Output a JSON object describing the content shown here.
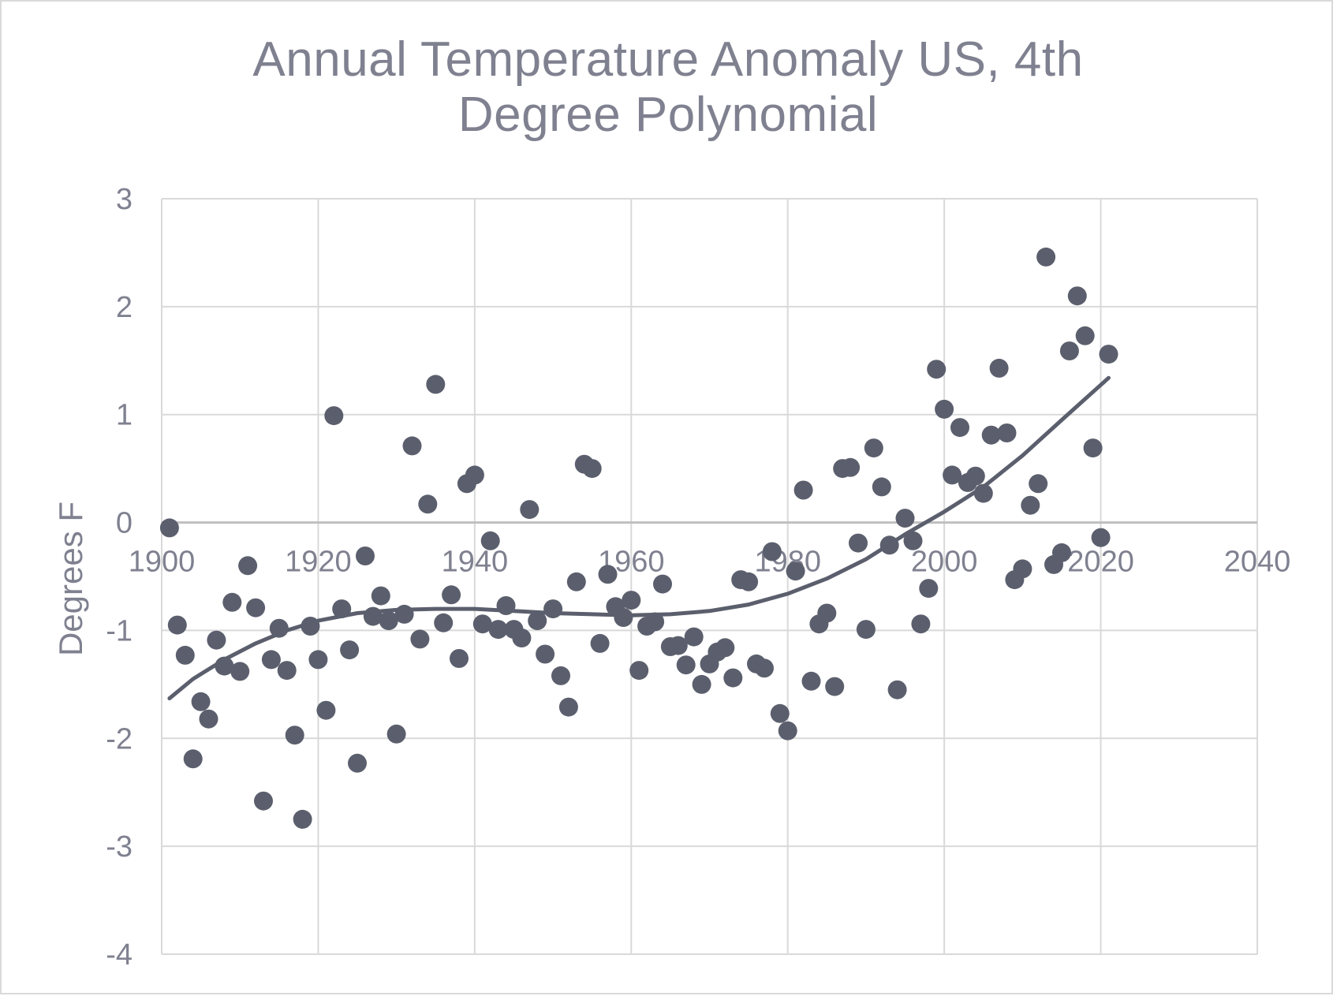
{
  "chart_data": {
    "type": "scatter",
    "title_lines": [
      "Annual Temperature Anomaly US, 4th",
      "Degree Polynomial"
    ],
    "xlabel": "",
    "ylabel": "Degrees F",
    "xlim": [
      1900,
      2040
    ],
    "ylim": [
      -4,
      3
    ],
    "x_ticks": [
      1900,
      1920,
      1940,
      1960,
      1980,
      2000,
      2020,
      2040
    ],
    "y_ticks": [
      3,
      2,
      1,
      0,
      -1,
      -2,
      -3,
      -4
    ],
    "grid": true,
    "legend": "none",
    "marker_color": "#5b5f6d",
    "trendline": {
      "type": "polynomial",
      "order": 4,
      "color": "#5b5f6d"
    },
    "points": [
      [
        1901,
        -0.05
      ],
      [
        1902,
        -0.95
      ],
      [
        1903,
        -1.23
      ],
      [
        1904,
        -2.19
      ],
      [
        1905,
        -1.66
      ],
      [
        1906,
        -1.82
      ],
      [
        1907,
        -1.09
      ],
      [
        1908,
        -1.33
      ],
      [
        1909,
        -0.74
      ],
      [
        1910,
        -1.38
      ],
      [
        1911,
        -0.4
      ],
      [
        1912,
        -0.79
      ],
      [
        1913,
        -2.58
      ],
      [
        1914,
        -1.27
      ],
      [
        1915,
        -0.98
      ],
      [
        1916,
        -1.37
      ],
      [
        1917,
        -1.97
      ],
      [
        1918,
        -2.75
      ],
      [
        1919,
        -0.96
      ],
      [
        1920,
        -1.27
      ],
      [
        1921,
        -1.74
      ],
      [
        1922,
        0.99
      ],
      [
        1923,
        -0.8
      ],
      [
        1924,
        -1.18
      ],
      [
        1925,
        -2.23
      ],
      [
        1926,
        -0.31
      ],
      [
        1927,
        -0.87
      ],
      [
        1928,
        -0.68
      ],
      [
        1929,
        -0.91
      ],
      [
        1930,
        -1.96
      ],
      [
        1931,
        -0.85
      ],
      [
        1932,
        0.71
      ],
      [
        1933,
        -1.08
      ],
      [
        1934,
        0.17
      ],
      [
        1935,
        1.28
      ],
      [
        1936,
        -0.93
      ],
      [
        1937,
        -0.67
      ],
      [
        1938,
        -1.26
      ],
      [
        1939,
        0.36
      ],
      [
        1940,
        0.44
      ],
      [
        1941,
        -0.94
      ],
      [
        1942,
        -0.17
      ],
      [
        1943,
        -0.99
      ],
      [
        1944,
        -0.77
      ],
      [
        1945,
        -0.99
      ],
      [
        1946,
        -1.07
      ],
      [
        1947,
        0.12
      ],
      [
        1948,
        -0.91
      ],
      [
        1949,
        -1.22
      ],
      [
        1950,
        -0.8
      ],
      [
        1951,
        -1.42
      ],
      [
        1952,
        -1.71
      ],
      [
        1953,
        -0.55
      ],
      [
        1954,
        0.54
      ],
      [
        1955,
        0.5
      ],
      [
        1956,
        -1.12
      ],
      [
        1957,
        -0.48
      ],
      [
        1958,
        -0.78
      ],
      [
        1959,
        -0.88
      ],
      [
        1960,
        -0.72
      ],
      [
        1961,
        -1.37
      ],
      [
        1962,
        -0.96
      ],
      [
        1963,
        -0.92
      ],
      [
        1964,
        -0.57
      ],
      [
        1965,
        -1.15
      ],
      [
        1966,
        -1.14
      ],
      [
        1967,
        -1.32
      ],
      [
        1968,
        -1.06
      ],
      [
        1969,
        -1.5
      ],
      [
        1970,
        -1.31
      ],
      [
        1971,
        -1.2
      ],
      [
        1972,
        -1.16
      ],
      [
        1973,
        -1.44
      ],
      [
        1974,
        -0.53
      ],
      [
        1975,
        -0.55
      ],
      [
        1976,
        -1.31
      ],
      [
        1977,
        -1.35
      ],
      [
        1978,
        -0.27
      ],
      [
        1979,
        -1.77
      ],
      [
        1980,
        -1.93
      ],
      [
        1981,
        -0.45
      ],
      [
        1982,
        0.3
      ],
      [
        1983,
        -1.47
      ],
      [
        1984,
        -0.94
      ],
      [
        1985,
        -0.84
      ],
      [
        1986,
        -1.52
      ],
      [
        1987,
        0.5
      ],
      [
        1988,
        0.51
      ],
      [
        1989,
        -0.19
      ],
      [
        1990,
        -0.99
      ],
      [
        1991,
        0.69
      ],
      [
        1992,
        0.33
      ],
      [
        1993,
        -0.21
      ],
      [
        1994,
        -1.55
      ],
      [
        1995,
        0.04
      ],
      [
        1996,
        -0.17
      ],
      [
        1997,
        -0.94
      ],
      [
        1998,
        -0.61
      ],
      [
        1999,
        1.42
      ],
      [
        2000,
        1.05
      ],
      [
        2001,
        0.44
      ],
      [
        2002,
        0.88
      ],
      [
        2003,
        0.37
      ],
      [
        2004,
        0.43
      ],
      [
        2005,
        0.27
      ],
      [
        2006,
        0.81
      ],
      [
        2007,
        1.43
      ],
      [
        2008,
        0.83
      ],
      [
        2009,
        -0.53
      ],
      [
        2010,
        -0.43
      ],
      [
        2011,
        0.16
      ],
      [
        2012,
        0.36
      ],
      [
        2013,
        2.46
      ],
      [
        2014,
        -0.39
      ],
      [
        2015,
        -0.28
      ],
      [
        2016,
        1.59
      ],
      [
        2017,
        2.1
      ],
      [
        2018,
        1.73
      ],
      [
        2019,
        0.69
      ],
      [
        2020,
        -0.14
      ],
      [
        2021,
        1.56
      ]
    ],
    "trendline_points": [
      [
        1901,
        -1.63
      ],
      [
        1904,
        -1.45
      ],
      [
        1908,
        -1.27
      ],
      [
        1912,
        -1.12
      ],
      [
        1916,
        -1.0
      ],
      [
        1920,
        -0.91
      ],
      [
        1925,
        -0.84
      ],
      [
        1930,
        -0.81
      ],
      [
        1935,
        -0.8
      ],
      [
        1940,
        -0.8
      ],
      [
        1945,
        -0.82
      ],
      [
        1950,
        -0.84
      ],
      [
        1955,
        -0.85
      ],
      [
        1960,
        -0.86
      ],
      [
        1965,
        -0.85
      ],
      [
        1970,
        -0.82
      ],
      [
        1975,
        -0.76
      ],
      [
        1980,
        -0.66
      ],
      [
        1985,
        -0.52
      ],
      [
        1990,
        -0.34
      ],
      [
        1995,
        -0.11
      ],
      [
        2000,
        0.1
      ],
      [
        2005,
        0.33
      ],
      [
        2010,
        0.62
      ],
      [
        2015,
        0.95
      ],
      [
        2021,
        1.34
      ]
    ]
  }
}
